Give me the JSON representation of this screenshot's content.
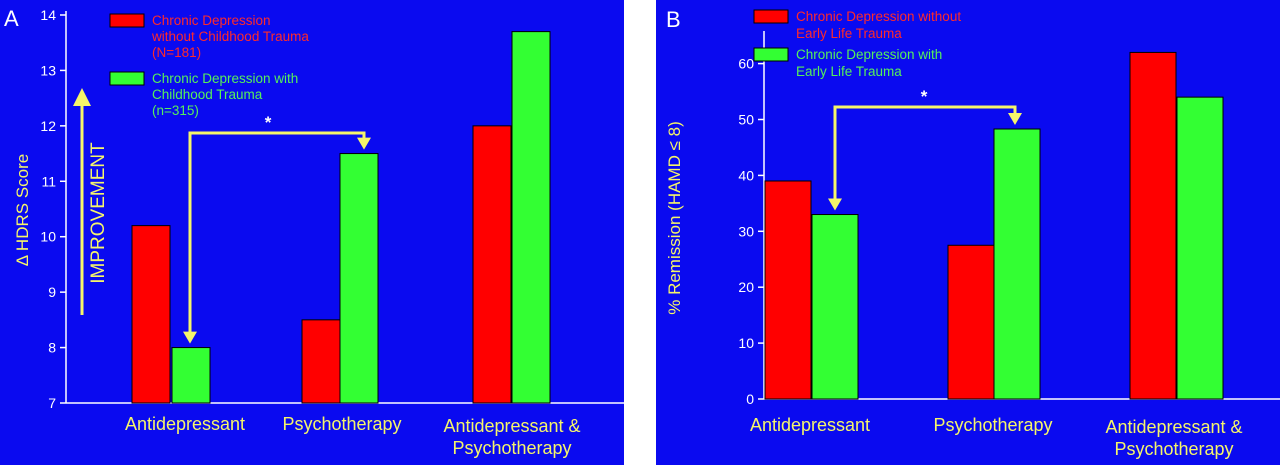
{
  "chart_data": [
    {
      "type": "bar",
      "panel_label": "A",
      "ylabel": "Δ HDRS Score",
      "ylim": [
        7,
        14
      ],
      "yticks": [
        "7",
        "8",
        "9",
        "10",
        "11",
        "12",
        "13",
        "14"
      ],
      "categories": [
        [
          "Antidepressant"
        ],
        [
          "Psychotherapy"
        ],
        [
          "Antidepressant &",
          "Psychotherapy"
        ]
      ],
      "series": [
        {
          "name": [
            "Chronic Depression",
            "without Childhood Trauma",
            "(N=181)"
          ],
          "color": "#ff0000",
          "values": [
            10.2,
            8.5,
            12.0
          ]
        },
        {
          "name": [
            "Chronic Depression with",
            "Childhood Trauma",
            "(n=315)"
          ],
          "color": "#33ff33",
          "values": [
            8.0,
            11.5,
            13.7
          ]
        }
      ],
      "annotations": {
        "significance": "*",
        "direction_label": "IMPROVEMENT"
      }
    },
    {
      "type": "bar",
      "panel_label": "B",
      "ylabel": "% Remission (HAMD ≤ 8)",
      "ylim": [
        0,
        65
      ],
      "yticks": [
        "0",
        "10",
        "20",
        "30",
        "40",
        "50",
        "60"
      ],
      "categories": [
        [
          "Antidepressant"
        ],
        [
          "Psychotherapy"
        ],
        [
          "Antidepressant &",
          "Psychotherapy"
        ]
      ],
      "series": [
        {
          "name": [
            "Chronic Depression without",
            "Early Life Trauma"
          ],
          "color": "#ff0000",
          "values": [
            39,
            27.5,
            62
          ]
        },
        {
          "name": [
            "Chronic Depression with",
            "Early Life Trauma"
          ],
          "color": "#33ff33",
          "values": [
            33,
            48.3,
            54
          ]
        }
      ],
      "annotations": {
        "significance": "*"
      }
    }
  ]
}
